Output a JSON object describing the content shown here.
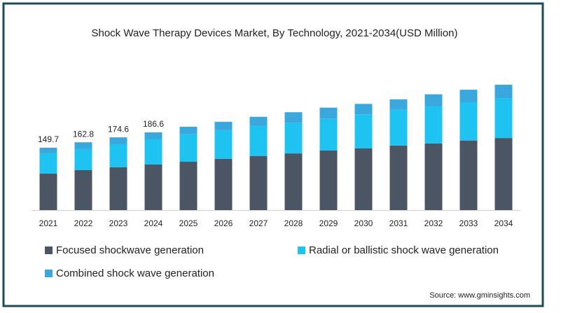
{
  "chart_data": {
    "type": "stacked-bar",
    "title": "Shock Wave Therapy Devices Market, By Technology, 2021-2034(USD Million)",
    "source": "Source: www.gminsights.com",
    "categories": [
      "2021",
      "2022",
      "2023",
      "2024",
      "2025",
      "2026",
      "2027",
      "2028",
      "2029",
      "2030",
      "2031",
      "2032",
      "2033",
      "2034"
    ],
    "series": [
      {
        "name": "Focused shockwave generation",
        "color": "#4b5563",
        "values": [
          87.5,
          95.9,
          102.6,
          109.3,
          116,
          123,
          130,
          136,
          143,
          148,
          155,
          160,
          167,
          173
        ]
      },
      {
        "name": "Radial or ballistic shock wave generation",
        "color": "#1ec3f2",
        "values": [
          48.8,
          50.5,
          55.5,
          60.6,
          66,
          69,
          72,
          74,
          76,
          82,
          86,
          89,
          92,
          96
        ]
      },
      {
        "name": "Combined shock wave generation",
        "color": "#3aa7dd",
        "values": [
          13.4,
          16.4,
          16.5,
          16.7,
          18,
          20,
          22,
          25,
          27,
          25,
          25,
          29,
          30,
          32
        ]
      }
    ],
    "totals": [
      149.7,
      162.8,
      174.6,
      186.6,
      null,
      null,
      null,
      null,
      null,
      null,
      null,
      null,
      null,
      null
    ],
    "ylim": [
      0,
      300
    ]
  }
}
